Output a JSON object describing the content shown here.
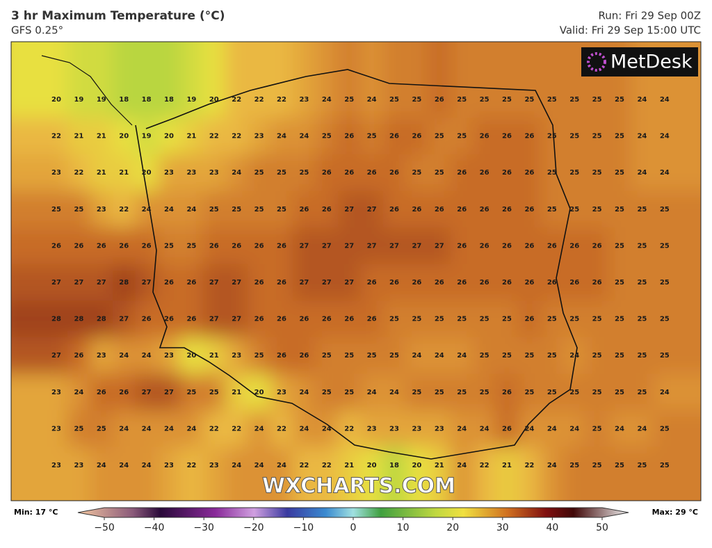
{
  "header": {
    "title": "3 hr Maximum Temperature (°C)",
    "model": "GFS 0.25°",
    "run": "Run: Fri 29 Sep 00Z",
    "valid": "Valid: Fri 29 Sep 15:00 UTC"
  },
  "map": {
    "logo": "MetDesk",
    "watermark": "WXCHARTS.COM",
    "grid": [
      [
        20,
        19,
        19,
        18,
        18,
        18,
        19,
        20,
        22,
        22,
        22,
        23,
        24,
        25,
        24,
        25,
        25,
        26,
        25,
        25,
        25,
        25,
        25,
        25,
        25,
        25,
        24,
        24
      ],
      [
        22,
        21,
        21,
        20,
        19,
        20,
        21,
        22,
        22,
        23,
        24,
        24,
        25,
        26,
        25,
        26,
        26,
        25,
        25,
        26,
        26,
        26,
        25,
        25,
        25,
        25,
        24,
        24
      ],
      [
        23,
        22,
        21,
        21,
        20,
        23,
        23,
        23,
        24,
        25,
        25,
        25,
        26,
        26,
        26,
        26,
        25,
        25,
        26,
        26,
        26,
        26,
        25,
        25,
        25,
        25,
        24,
        24
      ],
      [
        25,
        25,
        23,
        22,
        24,
        24,
        24,
        25,
        25,
        25,
        25,
        26,
        26,
        27,
        27,
        26,
        26,
        26,
        26,
        26,
        26,
        26,
        25,
        25,
        25,
        25,
        25,
        25
      ],
      [
        26,
        26,
        26,
        26,
        26,
        25,
        25,
        26,
        26,
        26,
        26,
        27,
        27,
        27,
        27,
        27,
        27,
        27,
        26,
        26,
        26,
        26,
        26,
        26,
        26,
        25,
        25,
        25
      ],
      [
        27,
        27,
        27,
        28,
        27,
        26,
        26,
        27,
        27,
        26,
        26,
        27,
        27,
        27,
        26,
        26,
        26,
        26,
        26,
        26,
        26,
        26,
        26,
        26,
        26,
        25,
        25,
        25
      ],
      [
        28,
        28,
        28,
        27,
        26,
        26,
        26,
        27,
        27,
        26,
        26,
        26,
        26,
        26,
        26,
        25,
        25,
        25,
        25,
        25,
        25,
        26,
        25,
        25,
        25,
        25,
        25,
        25
      ],
      [
        27,
        26,
        23,
        24,
        24,
        23,
        20,
        21,
        23,
        25,
        26,
        26,
        25,
        25,
        25,
        25,
        24,
        24,
        24,
        25,
        25,
        25,
        25,
        24,
        25,
        25,
        25,
        25
      ],
      [
        23,
        24,
        26,
        26,
        27,
        27,
        25,
        25,
        21,
        20,
        23,
        24,
        25,
        25,
        24,
        24,
        25,
        25,
        25,
        25,
        26,
        25,
        25,
        25,
        25,
        25,
        25,
        24
      ],
      [
        23,
        25,
        25,
        24,
        24,
        24,
        24,
        22,
        22,
        24,
        22,
        24,
        24,
        22,
        23,
        23,
        23,
        23,
        24,
        24,
        26,
        24,
        24,
        24,
        25,
        24,
        24,
        25
      ],
      [
        23,
        23,
        24,
        24,
        24,
        23,
        22,
        23,
        24,
        24,
        24,
        22,
        22,
        21,
        20,
        18,
        20,
        21,
        24,
        22,
        21,
        22,
        24,
        25,
        25,
        25,
        25,
        25
      ]
    ]
  },
  "legend": {
    "min": "Min: 17 °C",
    "max": "Max: 29 °C",
    "ticks": [
      {
        "value": -50,
        "label": "−50"
      },
      {
        "value": -40,
        "label": "−40"
      },
      {
        "value": -30,
        "label": "−30"
      },
      {
        "value": -20,
        "label": "−20"
      },
      {
        "value": -10,
        "label": "−10"
      },
      0,
      10,
      20,
      30,
      40,
      50
    ]
  }
}
